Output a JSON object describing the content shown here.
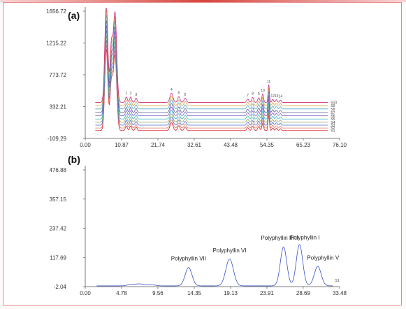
{
  "chart_data": [
    {
      "panel_label": "(a)",
      "type": "line",
      "xlim": [
        0.0,
        76.1
      ],
      "ylim": [
        -109.29,
        1656.72
      ],
      "x_ticks": [
        "0.00",
        "10.87",
        "21.74",
        "32.61",
        "43.48",
        "54.35",
        "65.23",
        "76.10"
      ],
      "y_ticks": [
        "-109.29",
        "332.21",
        "773.72",
        "1215.22",
        "1656.72"
      ],
      "peak_numbers": [
        "1",
        "2",
        "3",
        "4",
        "5",
        "6",
        "7",
        "8",
        "9",
        "10",
        "11",
        "12",
        "13",
        "14"
      ],
      "series": [
        {
          "name": "S1",
          "color": "#d8232a",
          "offset": 0
        },
        {
          "name": "S2",
          "color": "#e07b6a",
          "offset": 35
        },
        {
          "name": "S3",
          "color": "#4a6fd0",
          "offset": 75
        },
        {
          "name": "S4",
          "color": "#8fa35a",
          "offset": 115
        },
        {
          "name": "S5",
          "color": "#36b6c8",
          "offset": 160
        },
        {
          "name": "S6",
          "color": "#7a5cc8",
          "offset": 205
        },
        {
          "name": "S7",
          "color": "#5b5b9a",
          "offset": 250
        },
        {
          "name": "S8",
          "color": "#4fa8c4",
          "offset": 300
        },
        {
          "name": "S9",
          "color": "#e0a33a",
          "offset": 345
        },
        {
          "name": "S10",
          "color": "#c72c7a",
          "offset": 390
        }
      ],
      "peaks": [
        {
          "x": 6.3,
          "h": 1250,
          "w": 0.45
        },
        {
          "x": 7.8,
          "h": 700,
          "w": 0.4
        },
        {
          "x": 8.9,
          "h": 1150,
          "w": 0.5
        },
        {
          "x": 12.3,
          "h": 70,
          "w": 0.3
        },
        {
          "x": 13.6,
          "h": 70,
          "w": 0.3
        },
        {
          "x": 15.2,
          "h": 55,
          "w": 0.3
        },
        {
          "x": 25.8,
          "h": 120,
          "w": 0.45
        },
        {
          "x": 28.0,
          "h": 75,
          "w": 0.35
        },
        {
          "x": 29.9,
          "h": 55,
          "w": 0.35
        },
        {
          "x": 48.6,
          "h": 45,
          "w": 0.3
        },
        {
          "x": 50.1,
          "h": 65,
          "w": 0.3
        },
        {
          "x": 51.9,
          "h": 60,
          "w": 0.3
        },
        {
          "x": 53.1,
          "h": 110,
          "w": 0.25
        },
        {
          "x": 54.9,
          "h": 230,
          "w": 0.2
        },
        {
          "x": 56.1,
          "h": 40,
          "w": 0.25
        },
        {
          "x": 57.2,
          "h": 35,
          "w": 0.25
        },
        {
          "x": 58.4,
          "h": 30,
          "w": 0.25
        }
      ]
    },
    {
      "panel_label": "(b)",
      "type": "line",
      "xlim": [
        0.0,
        33.48
      ],
      "ylim": [
        -2.04,
        476.88
      ],
      "x_ticks": [
        "0.00",
        "4.78",
        "9.56",
        "14.35",
        "19.13",
        "23.91",
        "28.69",
        "33.48"
      ],
      "y_ticks": [
        "-2.04",
        "117.69",
        "237.42",
        "357.15",
        "476.88"
      ],
      "series": [
        {
          "name": "S1",
          "color": "#3a4fc0"
        }
      ],
      "peaks": [
        {
          "x": 6.0,
          "h": 5,
          "w": 0.5
        },
        {
          "x": 7.2,
          "h": 8,
          "w": 0.6
        },
        {
          "x": 8.8,
          "h": 4,
          "w": 0.5
        },
        {
          "x": 13.6,
          "h": 75,
          "w": 0.45
        },
        {
          "x": 19.0,
          "h": 110,
          "w": 0.5
        },
        {
          "x": 26.1,
          "h": 160,
          "w": 0.42
        },
        {
          "x": 28.2,
          "h": 170,
          "w": 0.42
        },
        {
          "x": 30.6,
          "h": 80,
          "w": 0.45
        }
      ],
      "annotations": [
        {
          "text": "Polyphyllin VII",
          "x": 13.6,
          "y": 105
        },
        {
          "text": "Polyphyllin VI",
          "x": 19.0,
          "y": 138
        },
        {
          "text": "Polyphyllin III  II",
          "x": 25.6,
          "y": 190
        },
        {
          "text": "Polyphyllin I",
          "x": 28.9,
          "y": 192
        },
        {
          "text": "Polyphyllin V",
          "x": 31.3,
          "y": 108
        }
      ]
    }
  ]
}
